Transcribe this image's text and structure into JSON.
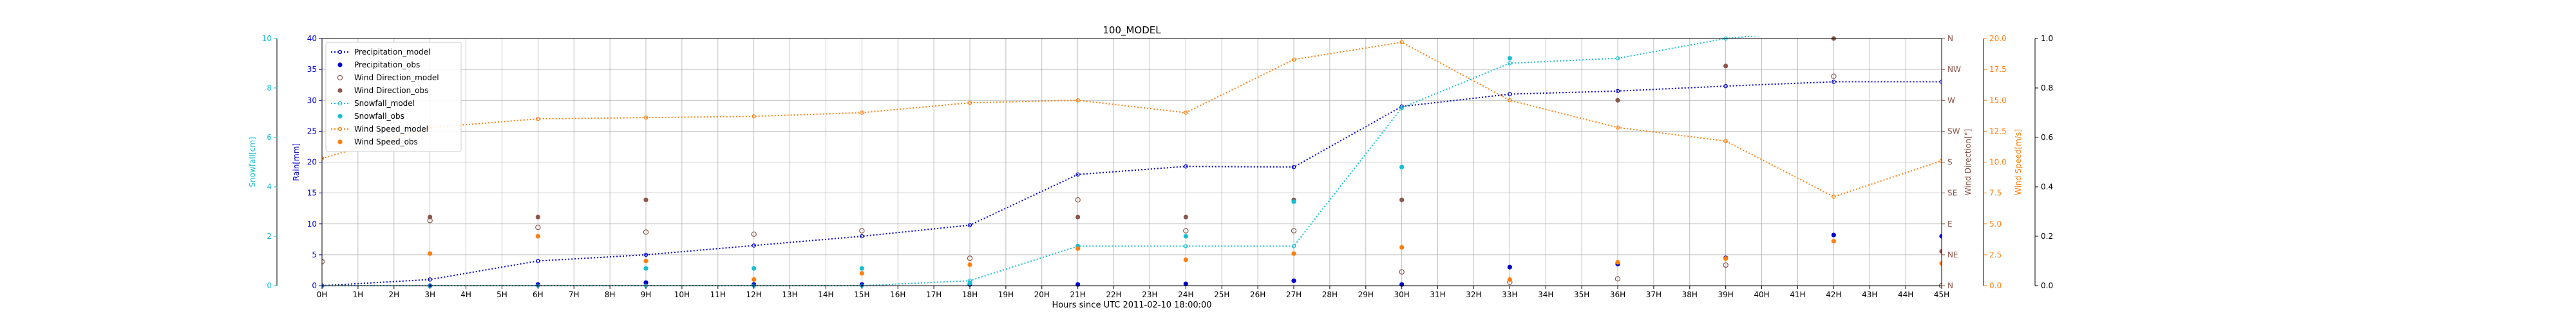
{
  "chart_data": {
    "type": "line",
    "title": "100_MODEL",
    "xlabel": "Hours since UTC 2011-02-10 18:00:00",
    "x_ticks": [
      "0H",
      "1H",
      "2H",
      "3H",
      "4H",
      "5H",
      "6H",
      "7H",
      "8H",
      "9H",
      "10H",
      "11H",
      "12H",
      "13H",
      "14H",
      "15H",
      "16H",
      "17H",
      "18H",
      "19H",
      "20H",
      "21H",
      "22H",
      "23H",
      "24H",
      "25H",
      "26H",
      "27H",
      "28H",
      "29H",
      "30H",
      "31H",
      "32H",
      "33H",
      "34H",
      "35H",
      "36H",
      "37H",
      "38H",
      "39H",
      "40H",
      "41H",
      "42H",
      "43H",
      "44H",
      "45H"
    ],
    "xlim": [
      0,
      45
    ],
    "grid": true,
    "legend_position": "top-left",
    "axes": {
      "rain": {
        "label": "Rain[mm]",
        "lim": [
          0,
          40
        ],
        "ticks": [
          "0",
          "5",
          "10",
          "15",
          "20",
          "25",
          "30",
          "35",
          "40"
        ],
        "color": "#0000cc"
      },
      "snowfall": {
        "label": "Snowfall[cm]",
        "lim": [
          0,
          10
        ],
        "ticks": [
          "0",
          "2",
          "4",
          "6",
          "8",
          "10"
        ],
        "color": "#17becf"
      },
      "wind_direction": {
        "label": "Wind Direction[°]",
        "ticks": [
          "N",
          "NE",
          "E",
          "SE",
          "S",
          "SW",
          "W",
          "NW",
          "N"
        ],
        "color": "#8c564b"
      },
      "wind_speed": {
        "label": "Wind Speed[m/s]",
        "lim": [
          0,
          20
        ],
        "ticks": [
          "0.0",
          "2.5",
          "5.0",
          "7.5",
          "10.0",
          "12.5",
          "15.0",
          "17.5",
          "20.0"
        ],
        "color": "#ff7f0e"
      },
      "extra": {
        "lim": [
          0,
          1
        ],
        "ticks": [
          "0.0",
          "0.2",
          "0.4",
          "0.6",
          "0.8",
          "1.0"
        ],
        "color": "#000000"
      }
    },
    "series": [
      {
        "name": "Precipitation_model",
        "axis": "rain",
        "kind": "line-marker",
        "color": "#0000cc",
        "x": [
          0,
          3,
          6,
          9,
          12,
          15,
          18,
          21,
          24,
          27,
          30,
          33,
          36,
          39,
          42,
          45
        ],
        "y": [
          0,
          1,
          4,
          5,
          6.5,
          8,
          9.8,
          18,
          19.3,
          19.2,
          29,
          31,
          31.5,
          32.3,
          33,
          33
        ]
      },
      {
        "name": "Precipitation_obs",
        "axis": "rain",
        "kind": "dot",
        "color": "#0000cc",
        "x": [
          0,
          3,
          6,
          9,
          12,
          15,
          18,
          21,
          24,
          27,
          30,
          33,
          36,
          39,
          42,
          45
        ],
        "y": [
          0,
          0,
          0.2,
          0.5,
          0.2,
          0.2,
          0.2,
          0.2,
          0.3,
          0.8,
          0.2,
          3,
          3.5,
          4.5,
          8.2,
          8
        ]
      },
      {
        "name": "Wind Direction_model",
        "axis": "wind_direction",
        "kind": "open-marker",
        "color": "#8c564b",
        "x": [
          0,
          3,
          6,
          9,
          12,
          15,
          18,
          21,
          24,
          27,
          30,
          33,
          36,
          39,
          42,
          45
        ],
        "y": [
          35,
          95,
          85,
          78,
          75,
          80,
          40,
          125,
          80,
          80,
          20,
          5,
          10,
          30,
          305,
          0
        ]
      },
      {
        "name": "Wind Direction_obs",
        "axis": "wind_direction",
        "kind": "dot",
        "color": "#8c564b",
        "x": [
          3,
          6,
          9,
          21,
          24,
          27,
          30,
          36,
          39,
          42,
          45
        ],
        "y": [
          100,
          100,
          125,
          100,
          100,
          125,
          125,
          270,
          320,
          360,
          50
        ]
      },
      {
        "name": "Snowfall_model",
        "axis": "snowfall",
        "kind": "line-marker",
        "color": "#17becf",
        "x": [
          0,
          3,
          6,
          9,
          12,
          15,
          18,
          21,
          24,
          27,
          30,
          33,
          36,
          39,
          42,
          45
        ],
        "y": [
          0,
          0,
          0,
          0,
          0,
          0,
          0.2,
          1.6,
          1.6,
          1.6,
          7.2,
          9,
          9.2,
          10,
          10.4,
          10.5
        ]
      },
      {
        "name": "Snowfall_obs",
        "axis": "snowfall",
        "kind": "dot",
        "color": "#17becf",
        "x": [
          9,
          12,
          15,
          18,
          21,
          24,
          27,
          30,
          33
        ],
        "y": [
          0.7,
          0.7,
          0.7,
          0.1,
          1.6,
          2,
          3.4,
          4.8,
          9.2
        ]
      },
      {
        "name": "Wind Speed_model",
        "axis": "wind_speed",
        "kind": "line-marker",
        "color": "#ff7f0e",
        "x": [
          0,
          3,
          6,
          9,
          12,
          15,
          18,
          21,
          24,
          27,
          30,
          33,
          36,
          39,
          42,
          45
        ],
        "y": [
          10.3,
          12.8,
          13.5,
          13.6,
          13.7,
          14,
          14.8,
          15,
          14,
          18.3,
          19.7,
          15,
          12.8,
          11.7,
          7.2,
          10.1
        ]
      },
      {
        "name": "Wind Speed_obs",
        "axis": "wind_speed",
        "kind": "dot",
        "color": "#ff7f0e",
        "x": [
          3,
          6,
          9,
          12,
          15,
          18,
          21,
          24,
          27,
          30,
          33,
          36,
          39,
          42,
          45
        ],
        "y": [
          2.6,
          4,
          2,
          0.5,
          1,
          1.7,
          3,
          2.1,
          2.6,
          3.1,
          0.5,
          1.9,
          2.2,
          3.6,
          1.8
        ]
      }
    ]
  }
}
